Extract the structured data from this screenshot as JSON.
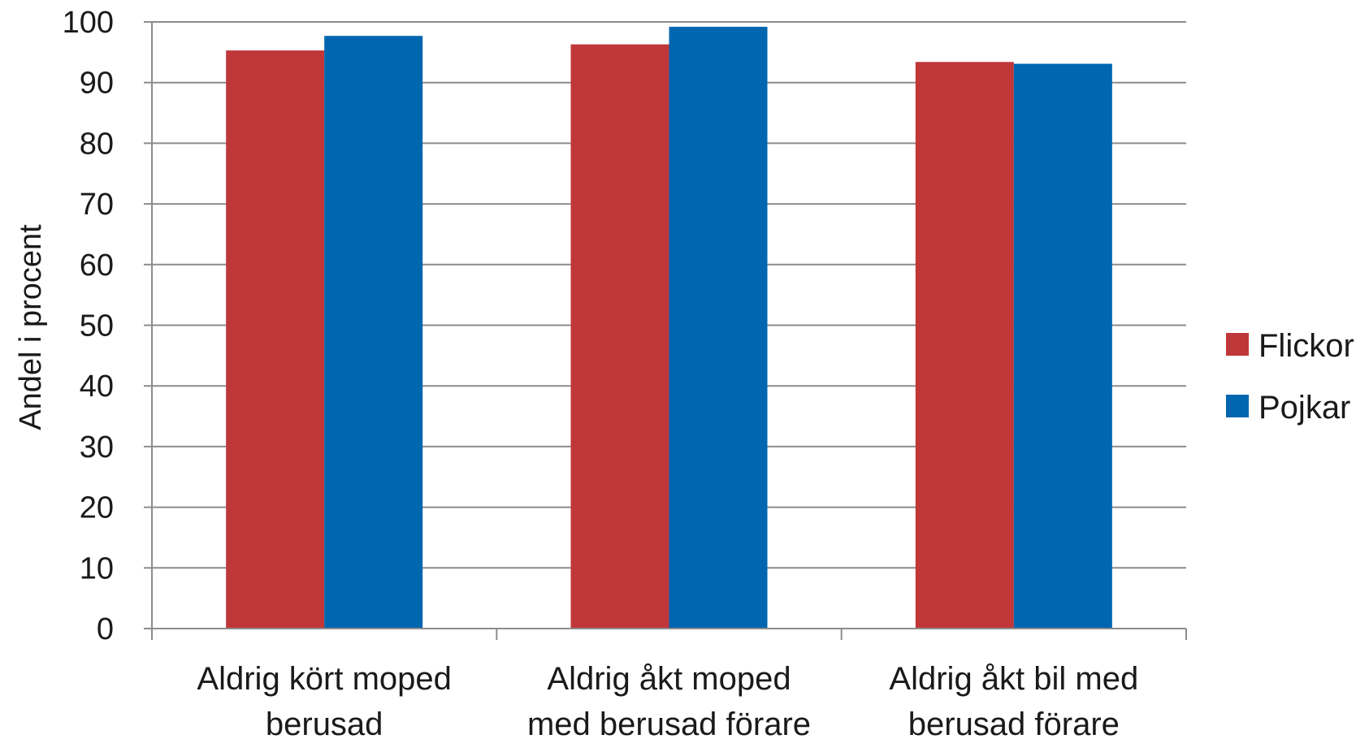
{
  "chart_data": {
    "type": "bar",
    "title": "",
    "xlabel": "",
    "ylabel": "Andel i procent",
    "ylim": [
      0,
      100
    ],
    "yticks": [
      0,
      10,
      20,
      30,
      40,
      50,
      60,
      70,
      80,
      90,
      100
    ],
    "grid": true,
    "legend_position": "right",
    "categories": [
      [
        "Aldrig kört moped",
        "berusad"
      ],
      [
        "Aldrig åkt moped",
        "med berusad förare"
      ],
      [
        "Aldrig åkt bil med",
        "berusad förare"
      ]
    ],
    "series": [
      {
        "name": "Flickor",
        "color": "#C0373A",
        "values": [
          95.3,
          96.3,
          93.4
        ]
      },
      {
        "name": "Pojkar",
        "color": "#0066B0",
        "values": [
          97.7,
          99.2,
          93.1
        ]
      }
    ]
  }
}
